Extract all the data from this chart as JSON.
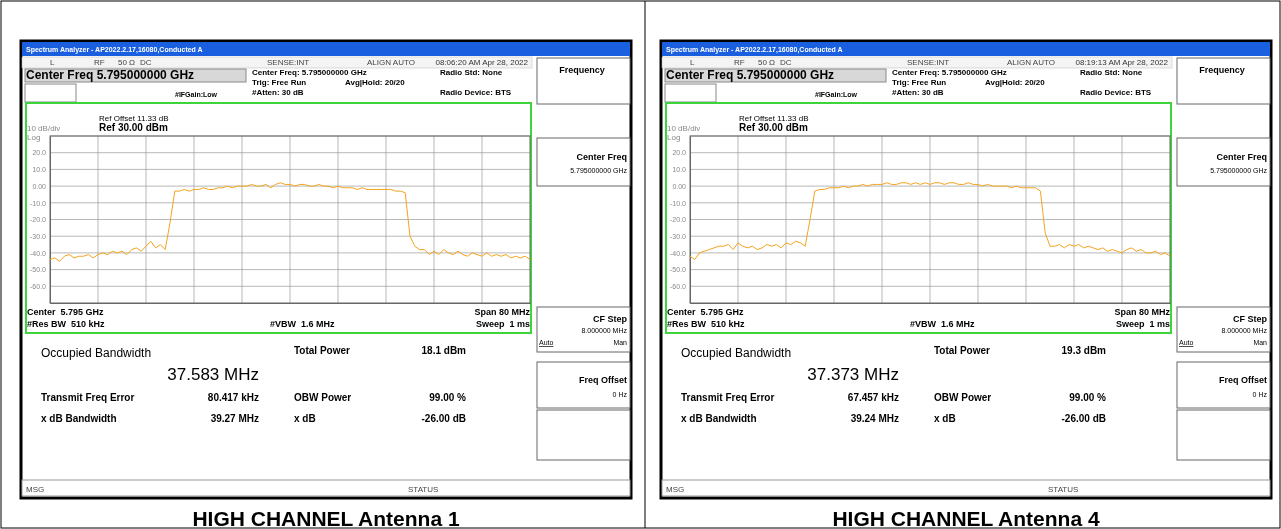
{
  "chart_data": [
    {
      "type": "line",
      "title": "HIGH CHANNEL Antenna 1",
      "annotations": [
        "Spectrum Analyzer - AP2022.2.17,16080,Conducted A",
        "L",
        "RF",
        "50 Ω",
        "DC",
        "SENSE:INT",
        "ALIGN AUTO",
        "08:06:20 AM Apr 28, 2022",
        "Center Freq 5.795000000 GHz",
        "Center Freq: 5.795000000 GHz",
        "Trig: Free Run",
        "Avg|Hold: 20/20",
        "#IFGain:Low",
        "#Atten: 30 dB",
        "Radio Std: None",
        "Radio Device: BTS",
        "Frequency",
        "Ref Offset 11.33 dB",
        "10 dB/div",
        "Ref 30.00 dBm",
        "Log",
        "Center  5.795 GHz",
        "#Res BW  510 kHz",
        "#VBW  1.6 MHz",
        "Span 80 MHz",
        "Sweep  1 ms",
        "Center Freq",
        "5.795000000 GHz",
        "CF Step",
        "8.000000 MHz",
        "Auto",
        "Man",
        "Freq Offset",
        "0 Hz",
        "Occupied Bandwidth",
        "37.583 MHz",
        "Total Power",
        "18.1 dBm",
        "Transmit Freq Error",
        "80.417 kHz",
        "OBW Power",
        "99.00 %",
        "x dB Bandwidth",
        "39.27 MHz",
        "x dB",
        "-26.00 dB",
        "MSG",
        "STATUS"
      ],
      "categories": [
        null,
        null,
        null,
        null,
        null,
        null,
        null,
        null,
        null,
        null,
        null,
        null,
        null,
        null,
        null,
        null,
        null,
        null,
        null,
        null,
        null,
        null,
        null,
        null,
        null,
        null,
        null,
        null,
        null,
        null,
        null,
        null,
        null,
        null,
        null,
        null,
        null,
        null,
        null,
        null,
        null,
        null,
        null,
        null,
        null,
        null,
        null,
        null,
        null,
        null,
        null,
        null,
        null,
        null,
        null,
        null,
        null,
        null,
        null,
        null,
        null,
        null,
        null,
        null,
        null,
        null,
        null,
        null,
        null,
        null,
        null,
        null,
        null,
        null,
        null,
        null,
        null,
        null,
        null,
        null,
        null,
        null,
        null,
        null,
        null,
        null,
        null,
        null,
        null,
        null,
        null,
        null,
        null,
        null,
        null,
        null,
        null,
        null,
        null,
        null,
        null
      ],
      "series": [
        {
          "color": "#f5a31e",
          "values": [
            -44,
            -43,
            -45,
            -42,
            -41,
            -43,
            -42,
            -42,
            -41,
            -43,
            -41,
            -40,
            -41,
            -39,
            -40,
            -39,
            -41,
            -38,
            -37,
            -39,
            -36,
            -33,
            -37,
            -35,
            -38,
            -22,
            -3,
            -3,
            -2,
            -3,
            -2,
            -2,
            -1,
            -2,
            -2,
            -1,
            -1,
            0,
            -1,
            0,
            0,
            0,
            1,
            0,
            0,
            1,
            -1,
            1,
            2,
            1,
            1,
            0,
            1,
            1,
            0,
            0,
            1,
            0,
            0,
            -1,
            0,
            -1,
            -1,
            -1,
            -2,
            -1,
            -2,
            -2,
            -2,
            -2,
            -2,
            -2,
            -3,
            -3,
            -4,
            -30,
            -36,
            -38,
            -38,
            -41,
            -39,
            -41,
            -38,
            -40,
            -41,
            -39,
            -41,
            -42,
            -40,
            -41,
            -42,
            -40,
            -42,
            -41,
            -42,
            -41,
            -43,
            -42,
            -43,
            -42,
            -44
          ]
        }
      ],
      "ylim": [
        -70,
        30
      ],
      "yticks": [
        {
          "value": 30,
          "label": null
        },
        {
          "value": 20,
          "label": "20.0"
        },
        {
          "value": 10,
          "label": "10.0"
        },
        {
          "value": 0,
          "label": "0.00"
        },
        {
          "value": -10,
          "label": "-10.0"
        },
        {
          "value": -20,
          "label": "-20.0"
        },
        {
          "value": -30,
          "label": "-30.0"
        },
        {
          "value": -40,
          "label": "-40.0"
        },
        {
          "value": -50,
          "label": "-50.0"
        },
        {
          "value": -60,
          "label": "-60.0"
        }
      ],
      "grid": true,
      "tick_labels": "y"
    },
    {
      "type": "line",
      "title": "HIGH CHANNEL Antenna 4",
      "annotations": [
        "Spectrum Analyzer - AP2022.2.17,16080,Conducted A",
        "L",
        "RF",
        "50 Ω",
        "DC",
        "SENSE:INT",
        "ALIGN AUTO",
        "08:19:13 AM Apr 28, 2022",
        "Center Freq 5.795000000 GHz",
        "Center Freq: 5.795000000 GHz",
        "Trig: Free Run",
        "Avg|Hold: 20/20",
        "#IFGain:Low",
        "#Atten: 30 dB",
        "Radio Std: None",
        "Radio Device: BTS",
        "Frequency",
        "Ref Offset 11.33 dB",
        "10 dB/div",
        "Ref 30.00 dBm",
        "Log",
        "Center  5.795 GHz",
        "#Res BW  510 kHz",
        "#VBW  1.6 MHz",
        "Span 80 MHz",
        "Sweep  1 ms",
        "Center Freq",
        "5.795000000 GHz",
        "CF Step",
        "8.000000 MHz",
        "Auto",
        "Man",
        "Freq Offset",
        "0 Hz",
        "Occupied Bandwidth",
        "37.373 MHz",
        "Total Power",
        "19.3 dBm",
        "Transmit Freq Error",
        "67.457 kHz",
        "OBW Power",
        "99.00 %",
        "x dB Bandwidth",
        "39.24 MHz",
        "x dB",
        "-26.00 dB",
        "MSG",
        "STATUS"
      ],
      "categories": [
        null,
        null,
        null,
        null,
        null,
        null,
        null,
        null,
        null,
        null,
        null,
        null,
        null,
        null,
        null,
        null,
        null,
        null,
        null,
        null,
        null,
        null,
        null,
        null,
        null,
        null,
        null,
        null,
        null,
        null,
        null,
        null,
        null,
        null,
        null,
        null,
        null,
        null,
        null,
        null,
        null,
        null,
        null,
        null,
        null,
        null,
        null,
        null,
        null,
        null,
        null,
        null,
        null,
        null,
        null,
        null,
        null,
        null,
        null,
        null,
        null,
        null,
        null,
        null,
        null,
        null,
        null,
        null,
        null,
        null,
        null,
        null,
        null,
        null,
        null,
        null,
        null,
        null,
        null,
        null,
        null,
        null,
        null,
        null,
        null,
        null,
        null,
        null,
        null,
        null,
        null,
        null,
        null,
        null,
        null,
        null,
        null,
        null,
        null,
        null,
        null
      ],
      "series": [
        {
          "color": "#f5a31e",
          "values": [
            -42,
            -44,
            -40,
            -39,
            -38,
            -37,
            -36,
            -36,
            -35,
            -38,
            -34,
            -36,
            -37,
            -36,
            -38,
            -37,
            -35,
            -36,
            -35,
            -37,
            -34,
            -35,
            -33,
            -34,
            -36,
            -20,
            -3,
            -2,
            -2,
            -1,
            -1,
            -1,
            0,
            -1,
            0,
            0,
            1,
            0,
            1,
            1,
            1,
            2,
            1,
            1,
            2,
            2,
            1,
            2,
            1,
            2,
            1,
            2,
            2,
            1,
            2,
            2,
            1,
            1,
            2,
            1,
            1,
            0,
            1,
            0,
            0,
            0,
            0,
            -1,
            0,
            -1,
            -1,
            -1,
            -1,
            -3,
            -28,
            -36,
            -36,
            -35,
            -37,
            -35,
            -36,
            -35,
            -37,
            -36,
            -37,
            -38,
            -37,
            -39,
            -38,
            -39,
            -40,
            -38,
            -37,
            -39,
            -38,
            -40,
            -40,
            -39,
            -41,
            -40,
            -42
          ]
        }
      ],
      "ylim": [
        -70,
        30
      ],
      "yticks": [
        {
          "value": 30,
          "label": null
        },
        {
          "value": 20,
          "label": "20.0"
        },
        {
          "value": 10,
          "label": "10.0"
        },
        {
          "value": 0,
          "label": "0.00"
        },
        {
          "value": -10,
          "label": "-10.0"
        },
        {
          "value": -20,
          "label": "-20.0"
        },
        {
          "value": -30,
          "label": "-30.0"
        },
        {
          "value": -40,
          "label": "-40.0"
        },
        {
          "value": -50,
          "label": "-50.0"
        },
        {
          "value": -60,
          "label": "-60.0"
        }
      ],
      "grid": true,
      "tick_labels": "y"
    }
  ]
}
